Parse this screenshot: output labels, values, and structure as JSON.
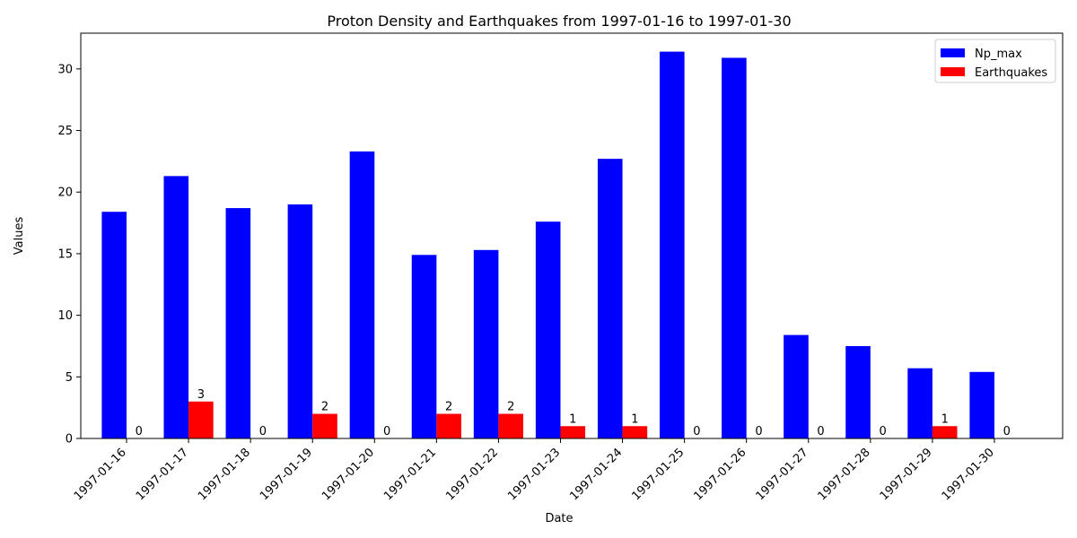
{
  "chart_data": {
    "type": "bar",
    "title": "Proton Density and Earthquakes from 1997-01-16 to 1997-01-30",
    "xlabel": "Date",
    "ylabel": "Values",
    "ylim": [
      0,
      32.9
    ],
    "yticks": [
      0,
      5,
      10,
      15,
      20,
      25,
      30
    ],
    "grid": false,
    "legend_position": "top-right",
    "categories": [
      "1997-01-16",
      "1997-01-17",
      "1997-01-18",
      "1997-01-19",
      "1997-01-20",
      "1997-01-21",
      "1997-01-22",
      "1997-01-23",
      "1997-01-24",
      "1997-01-25",
      "1997-01-26",
      "1997-01-27",
      "1997-01-28",
      "1997-01-29",
      "1997-01-30"
    ],
    "series": [
      {
        "name": "Np_max",
        "color": "#0000ff",
        "values": [
          18.4,
          21.3,
          18.7,
          19.0,
          23.3,
          14.9,
          15.3,
          17.6,
          22.7,
          31.4,
          30.9,
          8.4,
          7.5,
          5.7,
          5.4
        ],
        "show_labels": false
      },
      {
        "name": "Earthquakes",
        "color": "#ff0000",
        "values": [
          0,
          3,
          0,
          2,
          0,
          2,
          2,
          1,
          1,
          0,
          0,
          0,
          0,
          1,
          0
        ],
        "show_labels": true
      }
    ]
  }
}
